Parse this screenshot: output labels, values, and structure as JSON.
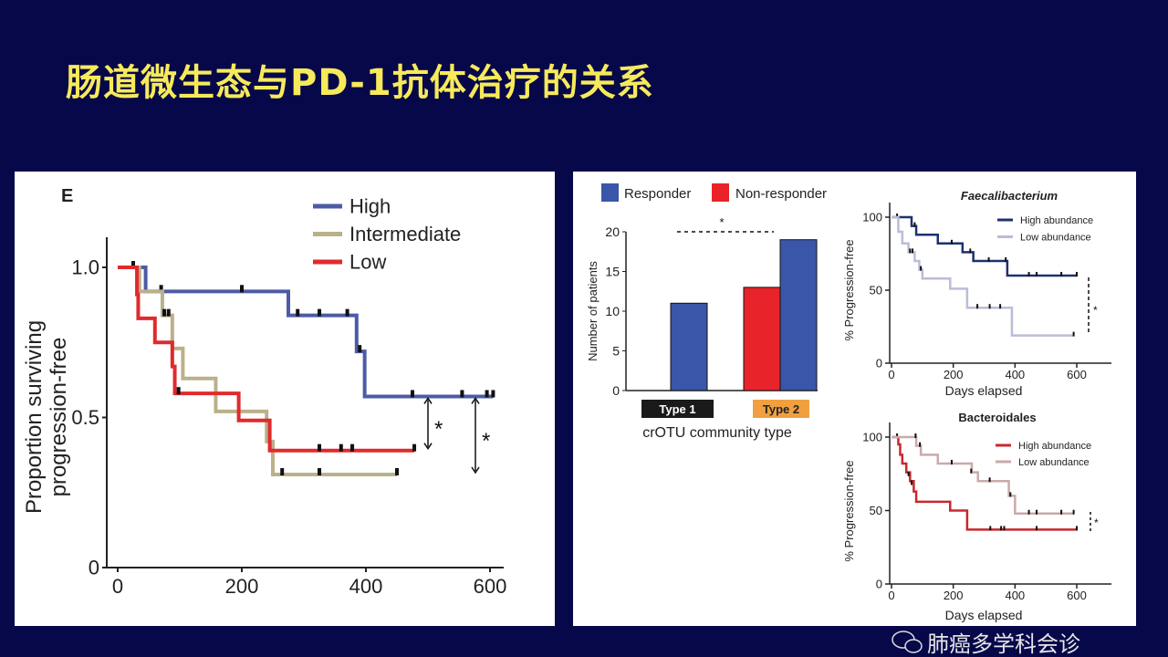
{
  "slide": {
    "title": "肠道微生态与PD-1抗体治疗的关系",
    "watermark": "肺癌多学科会诊"
  },
  "chart_data": [
    {
      "type": "line",
      "subtype": "kaplan-meier",
      "panel_label": "E",
      "title": "",
      "xlabel": "",
      "ylabel": [
        "Proportion surviving",
        "progression-free"
      ],
      "xlim": [
        0,
        620
      ],
      "ylim": [
        0,
        1.1
      ],
      "xticks": [
        "0",
        "200",
        "400",
        "600"
      ],
      "xtick_values": [
        0,
        200,
        400,
        600
      ],
      "yticks": [
        "0",
        "0.5",
        "1.0"
      ],
      "ytick_values": [
        0,
        0.5,
        1.0
      ],
      "legend_position": "top-right",
      "series": [
        {
          "name": "High",
          "color": "#4d5ba6",
          "steps": [
            [
              0,
              1.0
            ],
            [
              45,
              0.92
            ],
            [
              275,
              0.84
            ],
            [
              385,
              0.72
            ],
            [
              398,
              0.57
            ]
          ],
          "end": 605,
          "censored": [
            [
              25,
              1.0
            ],
            [
              70,
              0.92
            ],
            [
              200,
              0.92
            ],
            [
              290,
              0.84
            ],
            [
              325,
              0.84
            ],
            [
              370,
              0.84
            ],
            [
              390,
              0.72
            ],
            [
              475,
              0.57
            ],
            [
              555,
              0.57
            ],
            [
              595,
              0.57
            ],
            [
              605,
              0.57
            ]
          ]
        },
        {
          "name": "Intermediate",
          "color": "#bcb08a",
          "steps": [
            [
              0,
              1.0
            ],
            [
              35,
              0.92
            ],
            [
              72,
              0.84
            ],
            [
              88,
              0.73
            ],
            [
              105,
              0.63
            ],
            [
              158,
              0.52
            ],
            [
              240,
              0.42
            ],
            [
              250,
              0.31
            ]
          ],
          "end": 450,
          "censored": [
            [
              75,
              0.84
            ],
            [
              82,
              0.84
            ],
            [
              265,
              0.31
            ],
            [
              325,
              0.31
            ],
            [
              450,
              0.31
            ]
          ]
        },
        {
          "name": "Low",
          "color": "#e02a2c",
          "steps": [
            [
              0,
              1.0
            ],
            [
              31,
              0.91
            ],
            [
              33,
              0.83
            ],
            [
              60,
              0.75
            ],
            [
              88,
              0.67
            ],
            [
              92,
              0.58
            ],
            [
              195,
              0.49
            ],
            [
              245,
              0.39
            ]
          ],
          "end": 478,
          "censored": [
            [
              98,
              0.58
            ],
            [
              325,
              0.39
            ],
            [
              360,
              0.39
            ],
            [
              378,
              0.39
            ],
            [
              478,
              0.39
            ]
          ]
        }
      ],
      "annotations": [
        {
          "text": "*",
          "x": 505,
          "y_range": [
            0.39,
            0.57
          ]
        },
        {
          "text": "*",
          "x": 585,
          "y_range": [
            0.31,
            0.57
          ]
        }
      ]
    },
    {
      "type": "bar",
      "title": "",
      "xlabel": "crOTU community type",
      "ylabel": "Number of patients",
      "categories": [
        "Type 1",
        "Type 2"
      ],
      "category_colors": [
        "#1a1a1a",
        "#f0a040"
      ],
      "ylim": [
        0,
        20
      ],
      "yticks": [
        "0",
        "5",
        "10",
        "15",
        "20"
      ],
      "ytick_values": [
        0,
        5,
        10,
        15,
        20
      ],
      "legend_position": "top",
      "series": [
        {
          "name": "Responder",
          "color": "#3a56a8",
          "values": [
            11,
            19
          ]
        },
        {
          "name": "Non-responder",
          "color": "#e8242a",
          "values": [
            0,
            13
          ]
        }
      ],
      "annotations": [
        {
          "text": "*",
          "between": [
            "Type 1",
            "Type 2"
          ]
        }
      ]
    },
    {
      "type": "line",
      "subtype": "kaplan-meier",
      "title": "Faecalibacterium",
      "xlabel": "Days elapsed",
      "ylabel": "% Progression-free",
      "xlim": [
        0,
        700
      ],
      "ylim": [
        0,
        110
      ],
      "xticks": [
        "0",
        "200",
        "400",
        "600"
      ],
      "xtick_values": [
        0,
        200,
        400,
        600
      ],
      "yticks": [
        "0",
        "50",
        "100"
      ],
      "ytick_values": [
        0,
        50,
        100
      ],
      "legend_position": "top-right",
      "series": [
        {
          "name": "High abundance",
          "color": "#1f3170",
          "steps": [
            [
              0,
              100
            ],
            [
              65,
              94
            ],
            [
              80,
              88
            ],
            [
              150,
              82
            ],
            [
              230,
              76
            ],
            [
              265,
              70
            ],
            [
              375,
              60
            ]
          ],
          "end": 600,
          "censored": [
            [
              18,
              100
            ],
            [
              75,
              94
            ],
            [
              195,
              82
            ],
            [
              255,
              76
            ],
            [
              315,
              70
            ],
            [
              370,
              70
            ],
            [
              445,
              60
            ],
            [
              470,
              60
            ],
            [
              550,
              60
            ],
            [
              600,
              60
            ]
          ]
        },
        {
          "name": "Low abundance",
          "color": "#b9bdd8",
          "steps": [
            [
              0,
              100
            ],
            [
              22,
              90
            ],
            [
              35,
              82
            ],
            [
              55,
              76
            ],
            [
              75,
              70
            ],
            [
              90,
              64
            ],
            [
              100,
              58
            ],
            [
              190,
              51
            ],
            [
              245,
              38
            ],
            [
              390,
              19
            ]
          ],
          "end": 590,
          "censored": [
            [
              60,
              76
            ],
            [
              68,
              76
            ],
            [
              95,
              64
            ],
            [
              278,
              38
            ],
            [
              318,
              38
            ],
            [
              352,
              38
            ],
            [
              590,
              19
            ]
          ]
        }
      ],
      "annotations": [
        {
          "text": "*"
        }
      ]
    },
    {
      "type": "line",
      "subtype": "kaplan-meier",
      "title": "Bacteroidales",
      "xlabel": "Days elapsed",
      "ylabel": "% Progression-free",
      "xlim": [
        0,
        700
      ],
      "ylim": [
        0,
        110
      ],
      "xticks": [
        "0",
        "200",
        "400",
        "600"
      ],
      "xtick_values": [
        0,
        200,
        400,
        600
      ],
      "yticks": [
        "0",
        "50",
        "100"
      ],
      "ytick_values": [
        0,
        50,
        100
      ],
      "legend_position": "top-right",
      "series": [
        {
          "name": "High abundance",
          "color": "#c8282d",
          "steps": [
            [
              0,
              100
            ],
            [
              22,
              95
            ],
            [
              28,
              88
            ],
            [
              35,
              82
            ],
            [
              48,
              76
            ],
            [
              60,
              70
            ],
            [
              72,
              63
            ],
            [
              80,
              56
            ],
            [
              190,
              50
            ],
            [
              245,
              37
            ]
          ],
          "end": 600,
          "censored": [
            [
              18,
              100
            ],
            [
              55,
              74
            ],
            [
              65,
              68
            ],
            [
              320,
              37
            ],
            [
              355,
              37
            ],
            [
              365,
              37
            ],
            [
              470,
              37
            ],
            [
              600,
              37
            ]
          ]
        },
        {
          "name": "Low abundance",
          "color": "#c9aaaa",
          "steps": [
            [
              0,
              100
            ],
            [
              80,
              94
            ],
            [
              95,
              88
            ],
            [
              150,
              82
            ],
            [
              260,
              76
            ],
            [
              280,
              70
            ],
            [
              380,
              60
            ],
            [
              400,
              48
            ]
          ],
          "end": 590,
          "censored": [
            [
              78,
              100
            ],
            [
              92,
              94
            ],
            [
              195,
              82
            ],
            [
              258,
              76
            ],
            [
              318,
              70
            ],
            [
              385,
              60
            ],
            [
              445,
              48
            ],
            [
              470,
              48
            ],
            [
              550,
              48
            ],
            [
              590,
              48
            ]
          ]
        }
      ],
      "annotations": [
        {
          "text": "*"
        }
      ]
    }
  ]
}
